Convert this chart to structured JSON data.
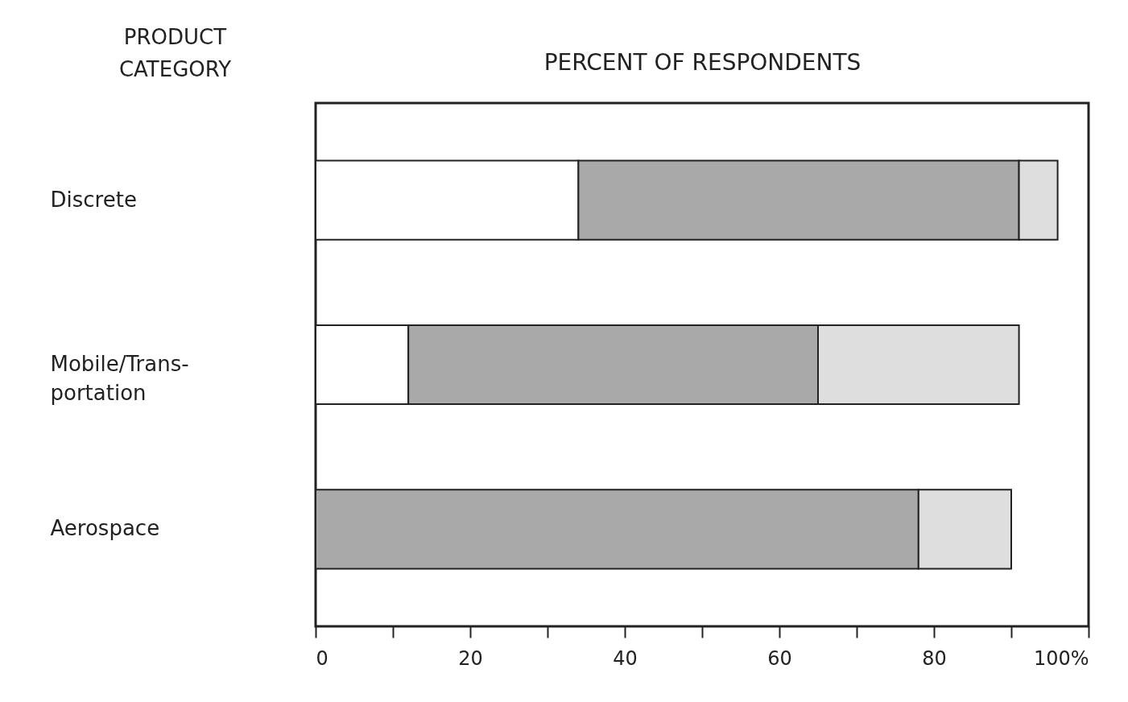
{
  "chart_data": {
    "type": "bar",
    "orientation": "horizontal",
    "stacked": true,
    "xlabel": "PERCENT OF RESPONDENTS",
    "ylabel": "PRODUCT CATEGORY",
    "categories": [
      "Discrete",
      "Mobile/Trans-portation",
      "Aerospace"
    ],
    "series": [
      {
        "color": "#ffffff",
        "values": [
          34,
          12,
          0
        ]
      },
      {
        "color": "#a9a9a9",
        "values": [
          57,
          53,
          78
        ]
      },
      {
        "color": "#dedede",
        "values": [
          5,
          26,
          12
        ]
      }
    ],
    "xlim": [
      0,
      100
    ],
    "xticks": [
      0,
      {
        "value": 10,
        "label": null
      },
      20,
      {
        "value": 30,
        "label": null
      },
      40,
      {
        "value": 50,
        "label": null
      },
      60,
      {
        "value": 70,
        "label": null
      },
      80,
      {
        "value": 90,
        "label": null
      },
      {
        "value": 100,
        "label": "100%"
      }
    ],
    "grid": false,
    "legend": false
  }
}
